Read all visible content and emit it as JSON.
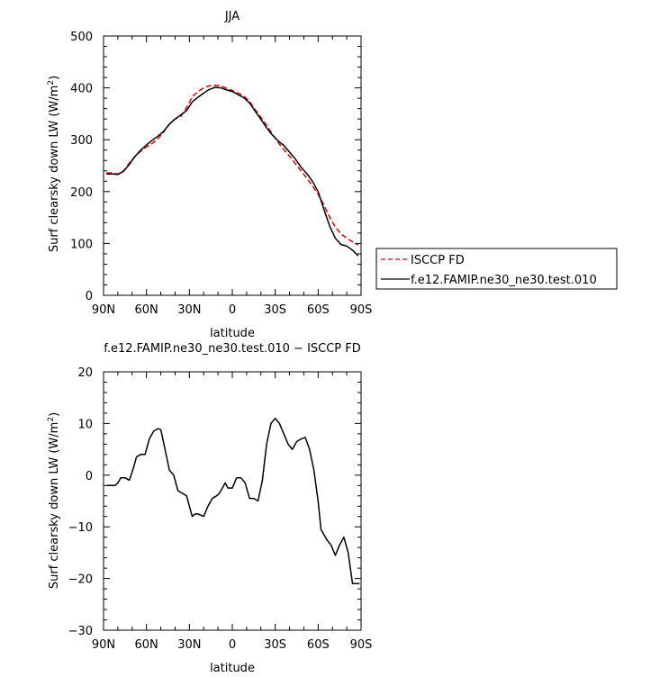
{
  "chart_data": [
    {
      "type": "line",
      "title": "JJA",
      "xlabel": "latitude",
      "ylabel": "Surf clearsky down LW (W/m²)",
      "ylabel_base": "Surf clearsky down LW (W/m",
      "ylabel_sup": "2",
      "ylabel_end": ")",
      "xlim": [
        90,
        -90
      ],
      "ylim": [
        0,
        500
      ],
      "xticks": [
        90,
        60,
        30,
        0,
        -30,
        -60,
        -90
      ],
      "xtick_labels": [
        "90N",
        "60N",
        "30N",
        "0",
        "30S",
        "60S",
        "90S"
      ],
      "yticks": [
        0,
        100,
        200,
        300,
        400,
        500
      ],
      "ytick_labels": [
        "0",
        "100",
        "200",
        "300",
        "400",
        "500"
      ],
      "legend_position": "right",
      "legend": [
        "ISCCP FD",
        "f.e12.FAMIP.ne30_ne30.test.010"
      ],
      "series": [
        {
          "name": "ISCCP FD",
          "color": "#e00000",
          "dash": "dashed",
          "x": [
            88,
            84,
            80,
            76,
            72,
            68,
            64,
            60,
            56,
            52,
            48,
            44,
            40,
            36,
            32,
            28,
            24,
            20,
            16,
            12,
            8,
            4,
            0,
            -4,
            -8,
            -12,
            -16,
            -20,
            -24,
            -28,
            -32,
            -36,
            -40,
            -44,
            -48,
            -52,
            -56,
            -60,
            -64,
            -68,
            -72,
            -76,
            -80,
            -84,
            -88
          ],
          "values": [
            236,
            236,
            234,
            240,
            255,
            268,
            278,
            286,
            293,
            302,
            315,
            330,
            340,
            345,
            362,
            383,
            393,
            400,
            404,
            405,
            404,
            399,
            395,
            390,
            384,
            374,
            358,
            343,
            328,
            311,
            295,
            281,
            268,
            254,
            240,
            226,
            211,
            195,
            174,
            151,
            132,
            118,
            110,
            103,
            97
          ]
        },
        {
          "name": "f.e12.FAMIP.ne30_ne30.test.010",
          "color": "#000000",
          "dash": "solid",
          "x": [
            88,
            84,
            80,
            76,
            72,
            68,
            64,
            60,
            56,
            52,
            48,
            44,
            40,
            36,
            32,
            28,
            24,
            20,
            16,
            12,
            8,
            4,
            0,
            -4,
            -8,
            -12,
            -16,
            -20,
            -24,
            -28,
            -32,
            -36,
            -40,
            -44,
            -48,
            -52,
            -56,
            -60,
            -64,
            -68,
            -72,
            -76,
            -80,
            -84,
            -88
          ],
          "values": [
            234,
            234,
            233,
            239,
            252,
            268,
            280,
            290,
            299,
            307,
            316,
            330,
            340,
            348,
            356,
            373,
            382,
            390,
            397,
            401,
            400,
            396,
            393,
            387,
            381,
            371,
            355,
            339,
            323,
            309,
            298,
            289,
            276,
            263,
            247,
            235,
            220,
            200,
            166,
            134,
            110,
            98,
            95,
            87,
            76
          ]
        }
      ]
    },
    {
      "type": "line",
      "title": "f.e12.FAMIP.ne30_ne30.test.010 − ISCCP FD",
      "xlabel": "latitude",
      "ylabel": "Surf clearsky down LW (W/m²)",
      "ylabel_base": "Surf clearsky down LW (W/m",
      "ylabel_sup": "2",
      "ylabel_end": ")",
      "xlim": [
        90,
        -90
      ],
      "ylim": [
        -30,
        20
      ],
      "xticks": [
        90,
        60,
        30,
        0,
        -30,
        -60,
        -90
      ],
      "xtick_labels": [
        "90N",
        "60N",
        "30N",
        "0",
        "30S",
        "60S",
        "90S"
      ],
      "yticks": [
        -30,
        -20,
        -10,
        0,
        10,
        20
      ],
      "ytick_labels": [
        "−30",
        "−20",
        "−10",
        "0",
        "10",
        "20"
      ],
      "series": [
        {
          "name": "",
          "color": "#000000",
          "dash": "solid",
          "x": [
            88,
            84,
            82,
            80,
            78,
            75,
            72,
            69,
            67,
            64,
            61,
            58,
            55,
            52,
            50,
            47,
            44,
            41,
            38,
            35,
            32,
            30,
            28,
            26,
            24,
            20,
            17,
            14,
            11,
            9,
            7,
            5,
            3,
            0,
            -3,
            -6,
            -9,
            -12,
            -15,
            -18,
            -21,
            -24,
            -27,
            -30,
            -33,
            -36,
            -39,
            -42,
            -45,
            -48,
            -51,
            -54,
            -57,
            -60,
            -62,
            -64,
            -66,
            -69,
            -72,
            -75,
            -78,
            -81,
            -84,
            -87,
            -89
          ],
          "values": [
            -2,
            -2,
            -2,
            -1.5,
            -0.5,
            -0.5,
            -1,
            1.5,
            3.5,
            4,
            4,
            7,
            8.5,
            9,
            8.8,
            5,
            1,
            0,
            -3,
            -3.5,
            -4,
            -6,
            -8,
            -7.5,
            -7.5,
            -8,
            -6,
            -4.5,
            -4,
            -3.5,
            -2.5,
            -1.5,
            -2.5,
            -2.5,
            -0.5,
            -0.5,
            -1.5,
            -4.5,
            -4.5,
            -5,
            -1,
            6,
            10,
            11,
            10,
            8,
            6,
            5,
            6.5,
            7,
            7.3,
            5,
            1,
            -5,
            -10.5,
            -11.5,
            -12.5,
            -13.5,
            -15.5,
            -13.5,
            -12,
            -15,
            -21,
            -21,
            -21
          ]
        }
      ]
    }
  ]
}
